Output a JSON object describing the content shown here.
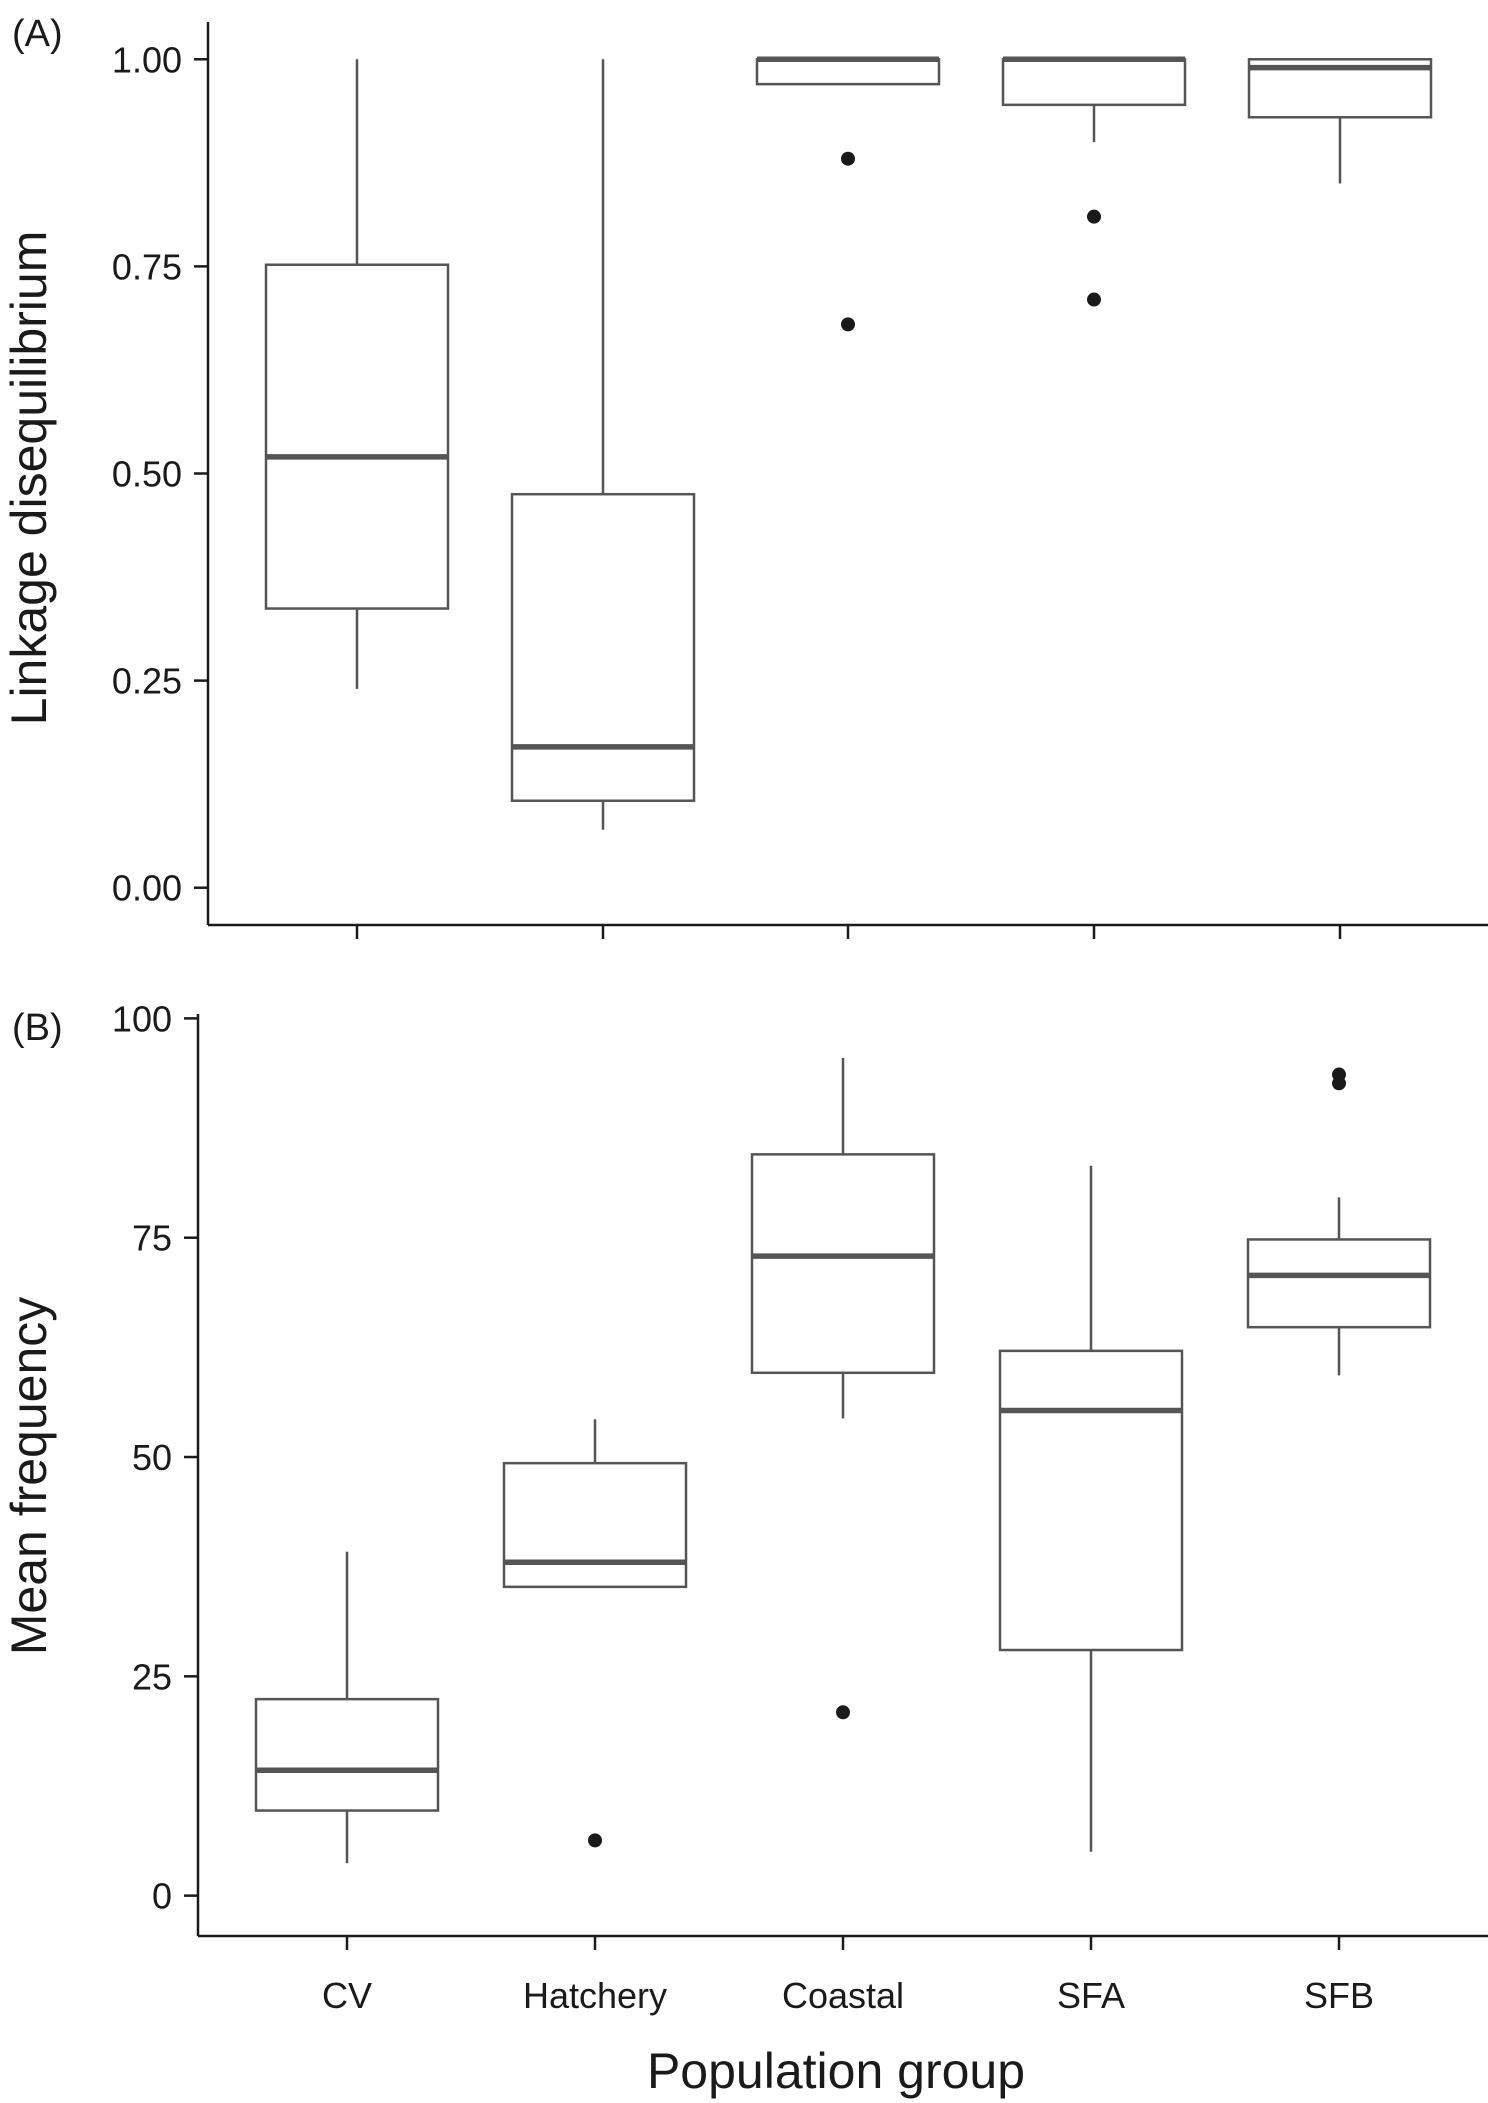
{
  "x_axis": {
    "label": "Population group",
    "categories": [
      "CV",
      "Hatchery",
      "Coastal",
      "SFA",
      "SFB"
    ]
  },
  "chart_data": [
    {
      "type": "box",
      "panel_label": "(A)",
      "ylabel": "Linkage disequilibrium",
      "ylim": [
        -0.045,
        1.045
      ],
      "yticks": [
        0.0,
        0.25,
        0.5,
        0.75,
        1.0
      ],
      "ytick_labels": [
        "0.00",
        "0.25",
        "0.50",
        "0.75",
        "1.00"
      ],
      "categories": [
        "CV",
        "Hatchery",
        "Coastal",
        "SFA",
        "SFB"
      ],
      "boxes": [
        {
          "category": "CV",
          "whisker_low": 0.24,
          "q1": 0.337,
          "median": 0.52,
          "q3": 0.752,
          "whisker_high": 1.0,
          "outliers": []
        },
        {
          "category": "Hatchery",
          "whisker_low": 0.07,
          "q1": 0.105,
          "median": 0.17,
          "q3": 0.475,
          "whisker_high": 1.0,
          "outliers": []
        },
        {
          "category": "Coastal",
          "whisker_low": 0.97,
          "q1": 0.97,
          "median": 1.0,
          "q3": 1.0,
          "whisker_high": 1.0,
          "outliers": [
            0.88,
            0.68
          ]
        },
        {
          "category": "SFA",
          "whisker_low": 0.9,
          "q1": 0.945,
          "median": 1.0,
          "q3": 1.0,
          "whisker_high": 1.0,
          "outliers": [
            0.81,
            0.71
          ]
        },
        {
          "category": "SFB",
          "whisker_low": 0.85,
          "q1": 0.93,
          "median": 0.99,
          "q3": 1.0,
          "whisker_high": 1.0,
          "outliers": []
        }
      ]
    },
    {
      "type": "box",
      "panel_label": "(B)",
      "ylabel": "Mean frequency",
      "ylim": [
        -4.6,
        100.5
      ],
      "yticks": [
        0,
        25,
        50,
        75,
        100
      ],
      "ytick_labels": [
        "0",
        "25",
        "50",
        "75",
        "100"
      ],
      "categories": [
        "CV",
        "Hatchery",
        "Coastal",
        "SFA",
        "SFB"
      ],
      "boxes": [
        {
          "category": "CV",
          "whisker_low": 3.7,
          "q1": 9.7,
          "median": 14.3,
          "q3": 22.4,
          "whisker_high": 39.2,
          "outliers": []
        },
        {
          "category": "Hatchery",
          "whisker_low": 35.2,
          "q1": 35.2,
          "median": 38.0,
          "q3": 49.3,
          "whisker_high": 54.3,
          "outliers": [
            6.3
          ]
        },
        {
          "category": "Coastal",
          "whisker_low": 54.4,
          "q1": 59.6,
          "median": 72.9,
          "q3": 84.5,
          "whisker_high": 95.5,
          "outliers": [
            20.9
          ]
        },
        {
          "category": "SFA",
          "whisker_low": 5.0,
          "q1": 28.0,
          "median": 55.3,
          "q3": 62.1,
          "whisker_high": 83.2,
          "outliers": []
        },
        {
          "category": "SFB",
          "whisker_low": 59.3,
          "q1": 64.8,
          "median": 70.7,
          "q3": 74.8,
          "whisker_high": 79.6,
          "outliers": [
            93.6,
            92.6
          ]
        }
      ]
    }
  ],
  "colors": {
    "box_stroke": "#555555",
    "median_stroke": "#555555",
    "axis": "#1a1a1a",
    "outlier": "#1a1a1a",
    "text": "#1a1a1a"
  }
}
